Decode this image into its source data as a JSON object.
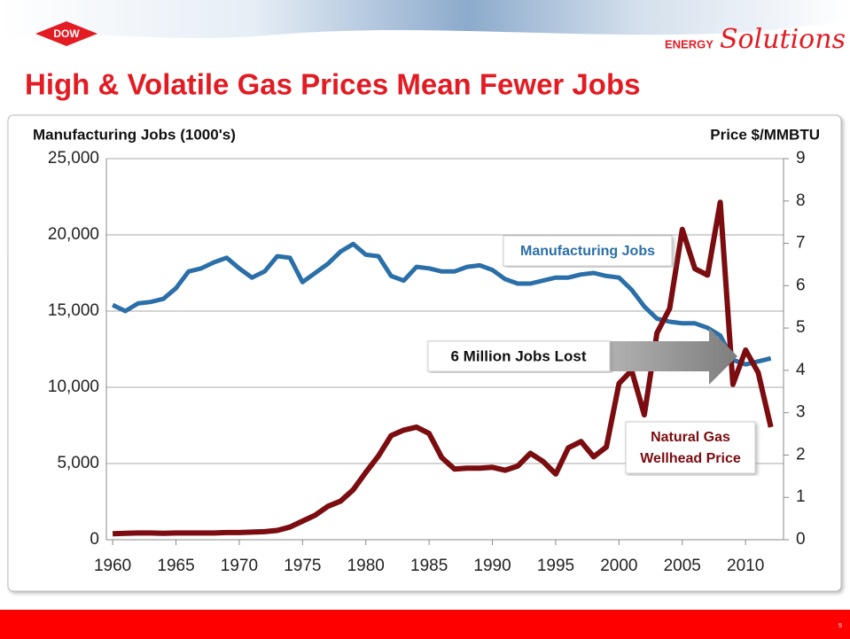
{
  "header": {
    "logo": "DOW",
    "brand_prefix": "ENERGY",
    "brand": "Solutions",
    "page_number": "5"
  },
  "chart_data": {
    "type": "line",
    "title": "High & Volatile Gas Prices Mean Fewer Jobs",
    "y_label": "Manufacturing Jobs (1000's)",
    "y2_label": "Price $/MMBTU",
    "annotations": [
      "Manufacturing Jobs",
      "6  Million Jobs Lost",
      "Natural Gas",
      "Wellhead Price"
    ],
    "x": [
      1960,
      1961,
      1962,
      1963,
      1964,
      1965,
      1966,
      1967,
      1968,
      1969,
      1970,
      1971,
      1972,
      1973,
      1974,
      1975,
      1976,
      1977,
      1978,
      1979,
      1980,
      1981,
      1982,
      1983,
      1984,
      1985,
      1986,
      1987,
      1988,
      1989,
      1990,
      1991,
      1992,
      1993,
      1994,
      1995,
      1996,
      1997,
      1998,
      1999,
      2000,
      2001,
      2002,
      2003,
      2004,
      2005,
      2006,
      2007,
      2008,
      2009,
      2010,
      2011,
      2012
    ],
    "series": [
      {
        "name": "Manufacturing Jobs",
        "color": "#2a6fa8",
        "values": [
          15400,
          15000,
          15500,
          15600,
          15800,
          16500,
          17600,
          17800,
          18200,
          18500,
          17800,
          17200,
          17600,
          18600,
          18500,
          16900,
          17500,
          18100,
          18900,
          19400,
          18700,
          18600,
          17300,
          17000,
          17900,
          17800,
          17600,
          17600,
          17900,
          18000,
          17700,
          17100,
          16800,
          16800,
          17000,
          17200,
          17200,
          17400,
          17500,
          17300,
          17200,
          16400,
          15300,
          14500,
          14300,
          14200,
          14200,
          13900,
          13400,
          11800,
          11500,
          11700,
          11900
        ]
      },
      {
        "name": "Natural Gas Wellhead Price",
        "color": "#7b0c10",
        "axis": "y2",
        "values": [
          0.14,
          0.15,
          0.16,
          0.16,
          0.15,
          0.16,
          0.16,
          0.16,
          0.16,
          0.17,
          0.17,
          0.18,
          0.19,
          0.22,
          0.3,
          0.44,
          0.58,
          0.79,
          0.91,
          1.18,
          1.59,
          1.98,
          2.46,
          2.59,
          2.66,
          2.51,
          1.94,
          1.67,
          1.69,
          1.69,
          1.71,
          1.64,
          1.74,
          2.04,
          1.85,
          1.55,
          2.17,
          2.32,
          1.96,
          2.19,
          3.69,
          4.0,
          2.95,
          4.88,
          5.46,
          7.33,
          6.4,
          6.25,
          7.97,
          3.67,
          4.48,
          3.95,
          2.66
        ]
      }
    ],
    "xlim": [
      1959.5,
      2013
    ],
    "xticks": [
      1960,
      1965,
      1970,
      1975,
      1980,
      1985,
      1990,
      1995,
      2000,
      2005,
      2010
    ],
    "ylim": [
      0,
      25000
    ],
    "yticks": [
      0,
      {
        "value": 5000,
        "label": "5,000"
      },
      {
        "value": 10000,
        "label": "10,000"
      },
      {
        "value": 15000,
        "label": "15,000"
      },
      {
        "value": 20000,
        "label": "20,000"
      },
      {
        "value": 25000,
        "label": "25,000"
      }
    ],
    "y2lim": [
      0,
      9
    ],
    "y2ticks": [
      0,
      1,
      2,
      3,
      4,
      5,
      6,
      7,
      8,
      9
    ],
    "grid": true
  }
}
